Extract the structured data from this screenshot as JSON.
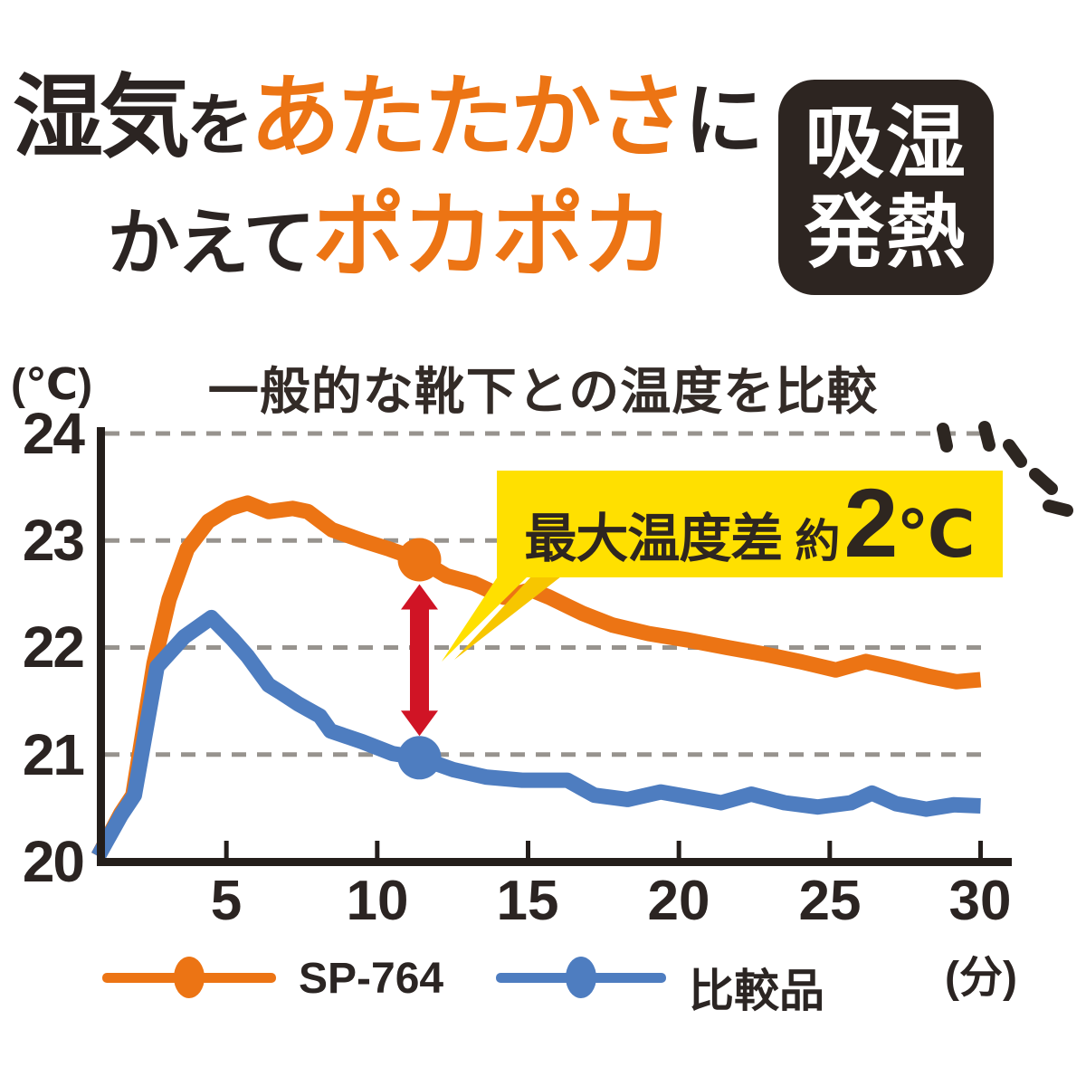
{
  "colors": {
    "orange": "#EC7414",
    "blue": "#4E7DC0",
    "red": "#D01425",
    "yellow": "#FFE000",
    "yellow_dark": "#F7C600",
    "text_dark": "#2B2422",
    "badge_bg": "#2D2521",
    "grid_gray": "#97938E",
    "axis_black": "#241E1B"
  },
  "header": {
    "line1": {
      "seg1": "湿気",
      "seg2": "を",
      "seg3": "あたたかさ",
      "seg4": "に"
    },
    "line2": {
      "seg1": "かえて",
      "seg2": "ポカポカ"
    },
    "badge": {
      "line1": "吸湿",
      "line2": "発熱"
    }
  },
  "chart": {
    "title": "一般的な靴下との温度を比較",
    "y_unit": "(℃)",
    "x_unit": "(分)",
    "y_tick_labels": [
      "24",
      "23",
      "22",
      "21",
      "20"
    ],
    "x_tick_labels": [
      "5",
      "10",
      "15",
      "20",
      "25",
      "30"
    ]
  },
  "callout": {
    "label": "最大温度差",
    "approx": "約",
    "value": "2",
    "unit": "℃"
  },
  "legend": {
    "series1": "SP-764",
    "series2": "比較品"
  },
  "chart_data": {
    "type": "line",
    "title": "一般的な靴下との温度を比較",
    "xlabel": "(分)",
    "ylabel": "(℃)",
    "xlim": [
      0,
      30
    ],
    "ylim": [
      20,
      24
    ],
    "x_ticks": [
      5,
      10,
      15,
      20,
      25,
      30
    ],
    "y_ticks": [
      20,
      21,
      22,
      23,
      24
    ],
    "grid": "horizontal-dashed",
    "legend_position": "bottom",
    "annotation": {
      "text": "最大温度差 約2℃",
      "at_minute": 11.4,
      "max_diff_c": 2
    },
    "series": [
      {
        "name": "SP-764",
        "color": "#EC7414",
        "marker_at": 11.4,
        "points": [
          [
            0.75,
            20.05
          ],
          [
            1.5,
            20.45
          ],
          [
            1.9,
            20.62
          ],
          [
            2.6,
            21.85
          ],
          [
            3.1,
            22.45
          ],
          [
            3.7,
            22.92
          ],
          [
            4.4,
            23.18
          ],
          [
            5.1,
            23.3
          ],
          [
            5.7,
            23.35
          ],
          [
            6.4,
            23.27
          ],
          [
            7.2,
            23.3
          ],
          [
            7.7,
            23.27
          ],
          [
            8.5,
            23.1
          ],
          [
            9.5,
            23.0
          ],
          [
            10.4,
            22.92
          ],
          [
            11.4,
            22.82
          ],
          [
            12.3,
            22.67
          ],
          [
            13.2,
            22.6
          ],
          [
            14.2,
            22.47
          ],
          [
            15.1,
            22.54
          ],
          [
            15.7,
            22.47
          ],
          [
            16.8,
            22.32
          ],
          [
            17.8,
            22.21
          ],
          [
            19.0,
            22.13
          ],
          [
            20.3,
            22.07
          ],
          [
            21.6,
            22.0
          ],
          [
            22.8,
            21.94
          ],
          [
            24.0,
            21.87
          ],
          [
            25.2,
            21.79
          ],
          [
            26.2,
            21.87
          ],
          [
            27.3,
            21.8
          ],
          [
            28.3,
            21.73
          ],
          [
            29.2,
            21.68
          ],
          [
            30.0,
            21.7
          ]
        ]
      },
      {
        "name": "比較品",
        "color": "#4E7DC0",
        "marker_at": 11.4,
        "points": [
          [
            0.75,
            20.05
          ],
          [
            1.5,
            20.43
          ],
          [
            1.95,
            20.62
          ],
          [
            2.7,
            21.82
          ],
          [
            3.6,
            22.1
          ],
          [
            4.5,
            22.28
          ],
          [
            5.2,
            22.08
          ],
          [
            5.7,
            21.92
          ],
          [
            6.4,
            21.65
          ],
          [
            6.8,
            21.58
          ],
          [
            7.4,
            21.47
          ],
          [
            8.1,
            21.36
          ],
          [
            8.45,
            21.22
          ],
          [
            9.5,
            21.12
          ],
          [
            10.5,
            21.01
          ],
          [
            11.4,
            20.97
          ],
          [
            12.5,
            20.86
          ],
          [
            13.6,
            20.79
          ],
          [
            14.8,
            20.76
          ],
          [
            16.3,
            20.76
          ],
          [
            17.2,
            20.62
          ],
          [
            18.3,
            20.58
          ],
          [
            19.4,
            20.65
          ],
          [
            20.4,
            20.6
          ],
          [
            21.4,
            20.55
          ],
          [
            22.4,
            20.63
          ],
          [
            23.5,
            20.55
          ],
          [
            24.6,
            20.51
          ],
          [
            25.7,
            20.55
          ],
          [
            26.4,
            20.64
          ],
          [
            27.2,
            20.54
          ],
          [
            28.2,
            20.49
          ],
          [
            29.1,
            20.53
          ],
          [
            30.0,
            20.52
          ]
        ]
      }
    ]
  }
}
